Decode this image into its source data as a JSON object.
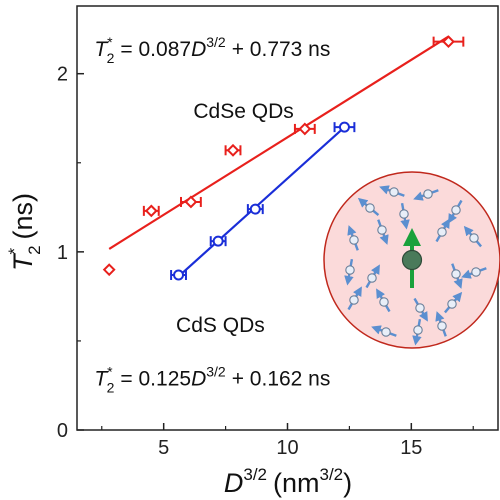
{
  "chart_data": {
    "type": "scatter",
    "xlabel_base": "D",
    "xlabel_exp": "3/2",
    "xlabel_unit_open": "(nm",
    "xlabel_unit_exp": "3/2",
    "xlabel_unit_close": ")",
    "ylabel_base": "T",
    "ylabel_sup": "*",
    "ylabel_sub": "2",
    "ylabel_unit": "(ns)",
    "xlim": [
      1.5,
      18.5
    ],
    "ylim": [
      0,
      2.38
    ],
    "x_ticks": [
      5,
      10,
      15
    ],
    "y_ticks": [
      0,
      1,
      2
    ],
    "series": [
      {
        "name": "CdSe QDs",
        "color": "#e8201c",
        "marker": "diamond",
        "x": [
          2.8,
          4.5,
          6.1,
          7.8,
          10.7,
          16.5
        ],
        "y": [
          0.9,
          1.23,
          1.28,
          1.57,
          1.69,
          2.18
        ],
        "xerr": [
          0,
          0.3,
          0.4,
          0.3,
          0.4,
          0.6
        ],
        "fit": {
          "slope": 0.087,
          "intercept": 0.773,
          "x_range": [
            2.8,
            16.5
          ]
        }
      },
      {
        "name": "CdS QDs",
        "color": "#1a2ed8",
        "marker": "circle",
        "x": [
          5.6,
          7.2,
          8.7,
          12.3
        ],
        "y": [
          0.87,
          1.06,
          1.24,
          1.7
        ],
        "xerr": [
          0.3,
          0.3,
          0.3,
          0.4
        ],
        "fit": {
          "slope": 0.125,
          "intercept": 0.162,
          "x_range": [
            5.6,
            12.3
          ]
        }
      }
    ],
    "annotations": [
      {
        "text": "CdSe QDs",
        "x": 6.2,
        "y": 1.75
      },
      {
        "text": "CdS QDs",
        "x": 5.5,
        "y": 0.55
      }
    ],
    "equations": [
      {
        "lhs": "T",
        "lhs_sup": "*",
        "lhs_sub": "2",
        "rhs_pre": "= 0.087",
        "var": "D",
        "var_exp": "3/2",
        "rhs_post": "+ 0.773 ns",
        "x": 2.2,
        "y": 2.1
      },
      {
        "lhs": "T",
        "lhs_sup": "*",
        "lhs_sub": "2",
        "rhs_pre": "= 0.125",
        "var": "D",
        "var_exp": "3/2",
        "rhs_post": "+ 0.162 ns",
        "x": 2.2,
        "y": 0.25
      }
    ],
    "inset": {
      "circle_fill": "#fbdada",
      "circle_stroke": "#c0281c",
      "spin_color": "#5b8fd0",
      "center_arrow_color": "#1aa13b",
      "center_dot_color": "#4a7a5a"
    }
  }
}
